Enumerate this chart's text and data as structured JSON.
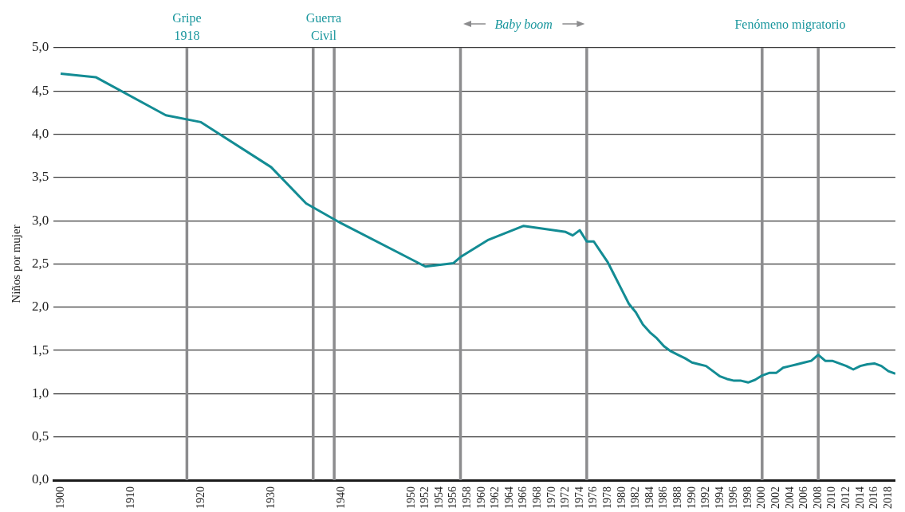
{
  "chart_data": {
    "type": "line",
    "ylabel": "Niños por mujer",
    "xlim": [
      1899,
      2019
    ],
    "xticks": [
      1900,
      1910,
      1920,
      1930,
      1940,
      1950,
      1952,
      1954,
      1956,
      1958,
      1960,
      1962,
      1964,
      1966,
      1968,
      1970,
      1972,
      1974,
      1976,
      1978,
      1980,
      1982,
      1984,
      1986,
      1988,
      1990,
      1992,
      1994,
      1996,
      1998,
      2000,
      2002,
      2004,
      2006,
      2008,
      2010,
      2012,
      2014,
      2016,
      2018
    ],
    "ylim": [
      0,
      5
    ],
    "yticks": [
      {
        "value": 0,
        "label": "0,0"
      },
      {
        "value": 0.5,
        "label": "0,5"
      },
      {
        "value": 1,
        "label": "1,0"
      },
      {
        "value": 1.5,
        "label": "1,5"
      },
      {
        "value": 2,
        "label": "2,0"
      },
      {
        "value": 2.5,
        "label": "2,5"
      },
      {
        "value": 3,
        "label": "3,0"
      },
      {
        "value": 3.5,
        "label": "3,5"
      },
      {
        "value": 4,
        "label": "4,0"
      },
      {
        "value": 4.5,
        "label": "4,5"
      },
      {
        "value": 5,
        "label": "5,0"
      }
    ],
    "grid": "y",
    "marker": "none",
    "line_style": "solid",
    "series": [
      {
        "color": "#138c94",
        "x": [
          1900,
          1905,
          1915,
          1920,
          1930,
          1935,
          1940,
          1952,
          1956,
          1957,
          1961,
          1966,
          1972,
          1973,
          1974,
          1975,
          1976,
          1977,
          1978,
          1979,
          1980,
          1981,
          1982,
          1983,
          1984,
          1985,
          1986,
          1987,
          1988,
          1989,
          1990,
          1991,
          1992,
          1993,
          1994,
          1995,
          1996,
          1997,
          1998,
          1999,
          2000,
          2001,
          2002,
          2003,
          2004,
          2005,
          2006,
          2007,
          2008,
          2009,
          2010,
          2011,
          2012,
          2013,
          2014,
          2015,
          2016,
          2017,
          2018,
          2019
        ],
        "values": [
          4.7,
          4.66,
          4.22,
          4.14,
          3.62,
          3.2,
          2.97,
          2.47,
          2.51,
          2.58,
          2.78,
          2.94,
          2.87,
          2.83,
          2.89,
          2.76,
          2.76,
          2.64,
          2.52,
          2.36,
          2.2,
          2.04,
          1.94,
          1.8,
          1.71,
          1.64,
          1.55,
          1.49,
          1.45,
          1.41,
          1.36,
          1.34,
          1.32,
          1.26,
          1.2,
          1.17,
          1.15,
          1.15,
          1.13,
          1.16,
          1.21,
          1.24,
          1.24,
          1.3,
          1.32,
          1.34,
          1.36,
          1.38,
          1.45,
          1.38,
          1.38,
          1.35,
          1.32,
          1.28,
          1.32,
          1.34,
          1.35,
          1.32,
          1.26,
          1.23
        ]
      }
    ],
    "ref_lines": [
      {
        "axis": "x",
        "value": 1918,
        "label": "Gripe 1918",
        "color": "#8c8c8e"
      },
      {
        "axis": "x",
        "value": 1936,
        "label": "Guerra Civil",
        "color": "#8c8c8e"
      },
      {
        "axis": "x",
        "value": 1939,
        "color": "#8c8c8e"
      },
      {
        "axis": "x",
        "value": 1957,
        "label": "Baby boom",
        "color": "#8c8c8e"
      },
      {
        "axis": "x",
        "value": 1975,
        "color": "#8c8c8e"
      },
      {
        "axis": "x",
        "value": 2000,
        "label": "Fenómeno migratorio",
        "color": "#8c8c8e"
      },
      {
        "axis": "x",
        "value": 2008,
        "color": "#8c8c8e"
      }
    ]
  }
}
